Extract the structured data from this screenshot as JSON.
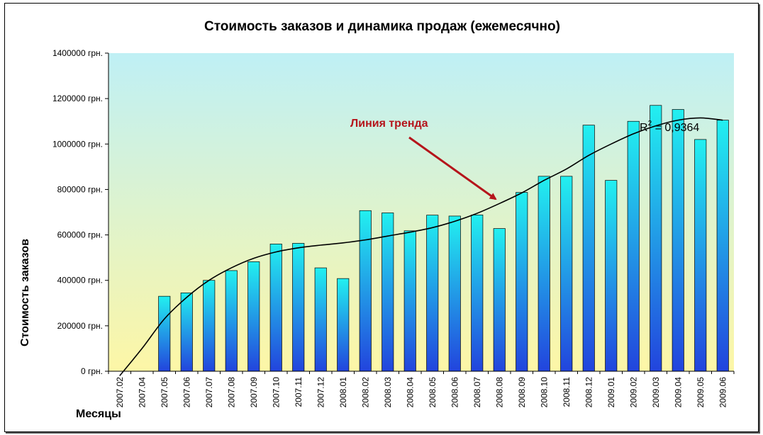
{
  "chart_data": {
    "type": "bar",
    "title": "Стоимость заказов и динамика продаж (ежемесячно)",
    "xlabel": "Месяцы",
    "ylabel": "Стоимость заказов",
    "ylim": [
      0,
      1400000
    ],
    "y_ticks": [
      0,
      200000,
      400000,
      600000,
      800000,
      1000000,
      1200000,
      1400000
    ],
    "y_tick_suffix": " грн.",
    "grid": false,
    "legend": "none",
    "categories": [
      "2007.02",
      "2007.04",
      "2007.05",
      "2007.06",
      "2007.07",
      "2007.08",
      "2007.09",
      "2007.10",
      "2007.11",
      "2007.12",
      "2008.01",
      "2008.02",
      "2008.03",
      "2008.04",
      "2008.05",
      "2008.06",
      "2008.07",
      "2008.08",
      "2008.09",
      "2008.10",
      "2008.11",
      "2008.12",
      "2009.01",
      "2009.02",
      "2009.03",
      "2009.04",
      "2009.05",
      "2009.06"
    ],
    "values": [
      0,
      0,
      330000,
      345000,
      400000,
      443000,
      482000,
      560000,
      563000,
      455000,
      408000,
      707000,
      697000,
      618000,
      687000,
      683000,
      688000,
      628000,
      787000,
      858000,
      858000,
      1083000,
      840000,
      1100000,
      1170000,
      1152000,
      1020000,
      1105000
    ],
    "trendline": {
      "values": [
        -20000,
        100000,
        230000,
        325000,
        400000,
        455000,
        497000,
        525000,
        543000,
        555000,
        565000,
        578000,
        595000,
        612000,
        632000,
        660000,
        695000,
        738000,
        785000,
        840000,
        890000,
        950000,
        1000000,
        1045000,
        1080000,
        1105000,
        1115000,
        1105000
      ]
    },
    "annotations": {
      "trend_label": "Линия тренда",
      "r2_label": "R",
      "r2_exp": "2",
      "r2_value": " = 0,9364"
    },
    "colors": {
      "bar_top": "#22f0f0",
      "bar_bottom": "#2244dd",
      "bg_top": "#bff0f5",
      "bg_bottom": "#fdf6a6",
      "arrow": "#b5151b",
      "trend": "#000000"
    }
  }
}
